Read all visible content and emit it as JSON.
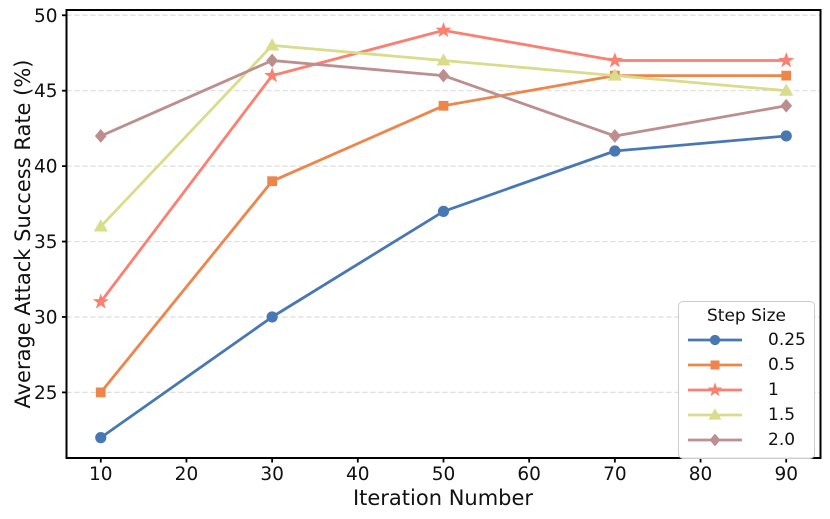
{
  "figure": {
    "background": "#ffffff",
    "text_color": "#111111"
  },
  "chart_data": {
    "type": "line",
    "title": "",
    "xlabel": "Iteration Number",
    "ylabel": "Average Attack Success Rate (%)",
    "x": [
      10,
      30,
      50,
      70,
      90
    ],
    "xticks": [
      10,
      20,
      30,
      40,
      50,
      60,
      70,
      80,
      90
    ],
    "yticks": [
      25,
      30,
      35,
      40,
      45,
      50
    ],
    "xlim": [
      6,
      94
    ],
    "ylim": [
      20.65,
      50.35
    ],
    "grid": {
      "axis": "y",
      "style": "dashed",
      "color": "#dcdcdc"
    },
    "legend": {
      "title": "Step Size",
      "position": "lower-right"
    },
    "series": [
      {
        "name": "0.25",
        "marker": "circle",
        "color": "#4878b4",
        "values": [
          22,
          30,
          37,
          41,
          42
        ]
      },
      {
        "name": "0.5",
        "marker": "square",
        "color": "#ee854a",
        "values": [
          25,
          39,
          44,
          46,
          46
        ]
      },
      {
        "name": "1",
        "marker": "star",
        "color": "#fa8072",
        "values": [
          31,
          46,
          49,
          47,
          47
        ]
      },
      {
        "name": "1.5",
        "marker": "triangle",
        "color": "#d9dc8a",
        "values": [
          36,
          48,
          47,
          46,
          45
        ]
      },
      {
        "name": "2.0",
        "marker": "diamond",
        "color": "#bc8f8f",
        "values": [
          42,
          47,
          46,
          42,
          44
        ]
      }
    ]
  }
}
